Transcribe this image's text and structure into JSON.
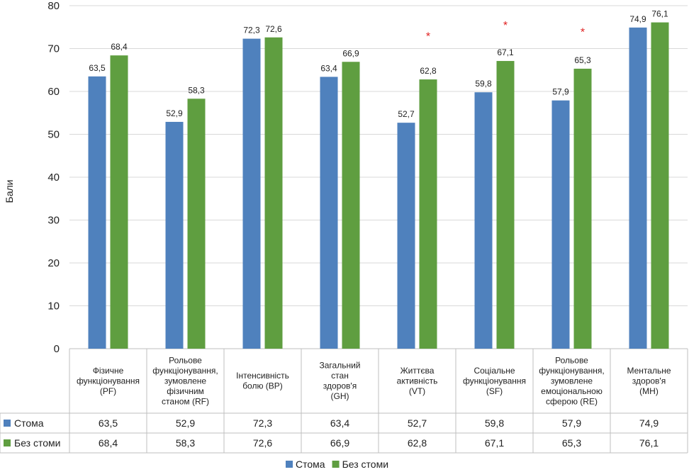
{
  "chart_data": {
    "type": "bar",
    "ylabel": "Бали",
    "ylim": [
      0,
      80
    ],
    "yticks": [
      0,
      10,
      20,
      30,
      40,
      50,
      60,
      70,
      80
    ],
    "grid": "horizontal",
    "legend_position": "bottom",
    "categories": [
      [
        "Фізичне",
        "функціонування",
        "(PF)"
      ],
      [
        "Рольове",
        "функціонування,",
        "зумовлене",
        "фізичним",
        "станом (RF)"
      ],
      [
        "Інтенсивність",
        "болю (BP)"
      ],
      [
        "Загальний",
        "стан",
        "здоров'я",
        "(GH)"
      ],
      [
        "Життєва",
        "активність",
        "(VT)"
      ],
      [
        "Соціальне",
        "функціонування",
        "(SF)"
      ],
      [
        "Рольове",
        "функціонування,",
        "зумовлене",
        "емоціональною",
        "сферою (RE)"
      ],
      [
        "Ментальне",
        "здоров'я",
        "(MH)"
      ]
    ],
    "series": [
      {
        "name": "Стома",
        "color": "#4f81bd",
        "values": [
          63.5,
          52.9,
          72.3,
          63.4,
          52.7,
          59.8,
          57.9,
          74.9
        ],
        "labels": [
          "63,5",
          "52,9",
          "72,3",
          "63,4",
          "52,7",
          "59,8",
          "57,9",
          "74,9"
        ]
      },
      {
        "name": "Без стоми",
        "color": "#5f9e40",
        "values": [
          68.4,
          58.3,
          72.6,
          66.9,
          62.8,
          67.1,
          65.3,
          76.1
        ],
        "labels": [
          "68,4",
          "58,3",
          "72,6",
          "66,9",
          "62,8",
          "67,1",
          "65,3",
          "76,1"
        ]
      }
    ],
    "significance_marker": "*",
    "significance_color": "#e02020",
    "significant_category_indices": [
      4,
      5,
      6
    ],
    "significance_values": [
      73,
      75.5,
      74
    ]
  }
}
